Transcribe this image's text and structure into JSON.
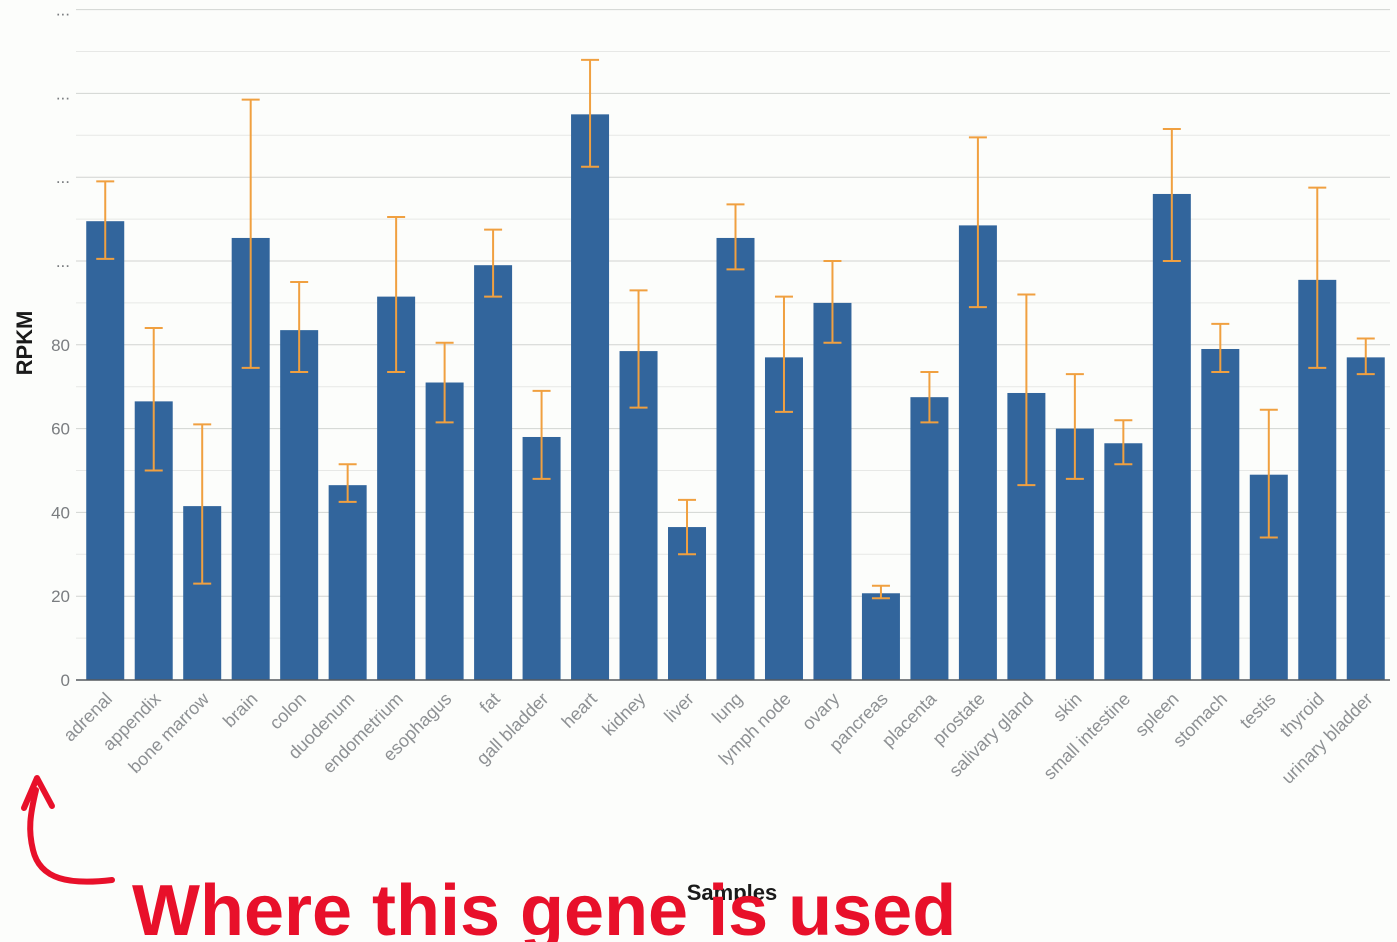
{
  "chart_data": {
    "type": "bar",
    "xlabel": "Samples",
    "ylabel": "RPKM",
    "ylim": [
      0,
      160
    ],
    "y_ticks": [
      0,
      20,
      40,
      60,
      80
    ],
    "y_ticks_truncated": [
      "...",
      "...",
      "...",
      "..."
    ],
    "grid": true,
    "bar_color": "#32659c",
    "error_color": "#f0a040",
    "categories": [
      "adrenal",
      "appendix",
      "bone marrow",
      "brain",
      "colon",
      "duodenum",
      "endometrium",
      "esophagus",
      "fat",
      "gall bladder",
      "heart",
      "kidney",
      "liver",
      "lung",
      "lymph node",
      "ovary",
      "pancreas",
      "placenta",
      "prostate",
      "salivary gland",
      "skin",
      "small intestine",
      "spleen",
      "stomach",
      "testis",
      "thyroid",
      "urinary bladder"
    ],
    "values": [
      109.5,
      66.5,
      41.5,
      105.5,
      83.5,
      46.5,
      91.5,
      71,
      99,
      58,
      135,
      78.5,
      36.5,
      105.5,
      77,
      90,
      20.7,
      67.5,
      108.5,
      68.5,
      60,
      56.5,
      116,
      79,
      49,
      95.5,
      77
    ],
    "error_low": [
      100.5,
      50,
      23,
      74.5,
      73.5,
      42.5,
      73.5,
      61.5,
      91.5,
      48,
      122.5,
      65,
      30,
      98,
      64,
      80.5,
      19.5,
      61.5,
      89,
      46.5,
      48,
      51.5,
      100,
      73.5,
      34,
      74.5,
      73
    ],
    "error_high": [
      119,
      84,
      61,
      138.5,
      95,
      51.5,
      110.5,
      80.5,
      107.5,
      69,
      148,
      93,
      43,
      113.5,
      91.5,
      100,
      22.5,
      73.5,
      129.5,
      92,
      73,
      62,
      131.5,
      85,
      64.5,
      117.5,
      81.5
    ]
  },
  "annotation": {
    "text": "Where this gene is used",
    "color": "#e8102a"
  }
}
